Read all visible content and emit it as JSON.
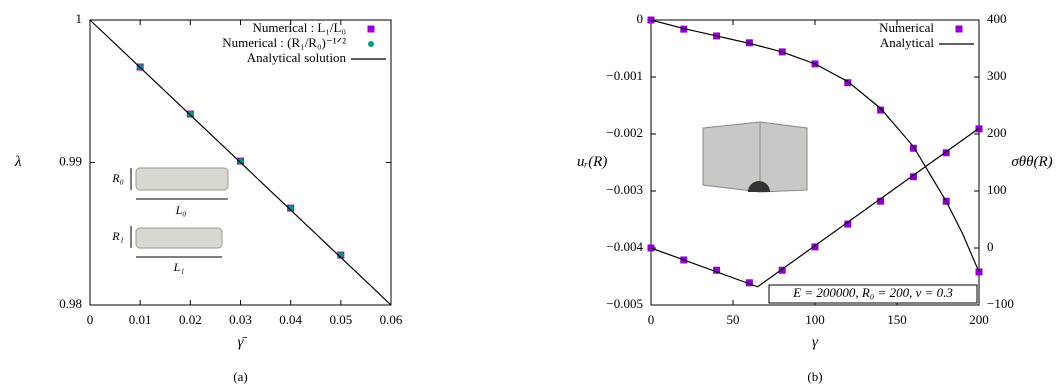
{
  "chart_data": [
    {
      "type": "line",
      "caption": "(a)",
      "xlabel": "γ̄",
      "ylabel": "λ",
      "xlim": [
        0,
        0.06
      ],
      "ylim": [
        0.98,
        1
      ],
      "xticks": [
        0,
        0.01,
        0.02,
        0.03,
        0.04,
        0.05,
        0.06
      ],
      "yticks": [
        0.98,
        0.99,
        1
      ],
      "legend": "upper right",
      "series": [
        {
          "name": "Numerical : L₁/L₀",
          "color": "#9400d3",
          "marker": "square",
          "x": [
            0.01,
            0.02,
            0.03,
            0.04,
            0.05
          ],
          "values": [
            0.9967,
            0.9934,
            0.9901,
            0.9868,
            0.9835
          ]
        },
        {
          "name": "Numerical : (R₁/R₀)⁻¹ᐟ²",
          "color": "#009e73",
          "marker": "circle",
          "x": [
            0.01,
            0.02,
            0.03,
            0.04,
            0.05
          ],
          "values": [
            0.9967,
            0.9934,
            0.9901,
            0.9868,
            0.9835
          ]
        },
        {
          "name": "Analytical solution",
          "color": "#000000",
          "marker": "none",
          "x": [
            0,
            0.06
          ],
          "values": [
            1,
            0.98
          ]
        }
      ],
      "annotations": [
        "R₀",
        "L₀",
        "R₁",
        "L₁"
      ]
    },
    {
      "type": "line",
      "caption": "(b)",
      "xlabel": "γ",
      "ylabel": "uᵣ(R)",
      "y2label": "σθθ(R)",
      "xlim": [
        0,
        200
      ],
      "ylim": [
        -0.005,
        0
      ],
      "y2lim": [
        -100,
        400
      ],
      "xticks": [
        0,
        50,
        100,
        150,
        200
      ],
      "yticks": [
        0,
        {
          "value": -0.001,
          "label": "−0.001"
        },
        {
          "value": -0.002,
          "label": "−0.002"
        },
        {
          "value": -0.003,
          "label": "−0.003"
        },
        {
          "value": -0.004,
          "label": "−0.004"
        },
        {
          "value": -0.005,
          "label": "−0.005"
        }
      ],
      "y2ticks": [
        {
          "value": -100,
          "label": "−100"
        },
        0,
        100,
        200,
        300,
        400
      ],
      "legend": "upper right",
      "series": [
        {
          "name": "Numerical",
          "color": "#9400d3",
          "marker": "square",
          "x": [
            0,
            20,
            40,
            60,
            80,
            100,
            120,
            140,
            160,
            180,
            200
          ],
          "values": [
            0,
            -0.00016,
            -0.00028,
            -0.0004,
            -0.00056,
            -0.00077,
            -0.0011,
            -0.00158,
            -0.00225,
            -0.00318,
            -0.00442
          ]
        },
        {
          "color": "#9400d3",
          "marker": "square",
          "axis": "y2",
          "x": [
            0,
            20,
            40,
            60,
            80,
            100,
            120,
            140,
            160,
            180,
            200
          ],
          "values": [
            0,
            -21,
            -39,
            -61,
            -39,
            2,
            42,
            82,
            125,
            167,
            209
          ]
        },
        {
          "name": "Analytical",
          "color": "#000000",
          "marker": "none",
          "x": [
            0,
            20,
            40,
            60,
            80,
            100,
            120,
            140,
            160,
            180,
            190,
            200
          ],
          "values": [
            0,
            -0.00015,
            -0.00028,
            -0.00041,
            -0.00056,
            -0.00077,
            -0.00108,
            -0.00155,
            -0.00222,
            -0.00318,
            -0.00375,
            -0.00442
          ]
        },
        {
          "color": "#000000",
          "marker": "none",
          "axis": "y2",
          "x": [
            0,
            65,
            200
          ],
          "values": [
            0,
            -68,
            210
          ]
        }
      ],
      "annotations": [
        "E = 200000, R₀ = 200, ν = 0.3"
      ]
    }
  ]
}
